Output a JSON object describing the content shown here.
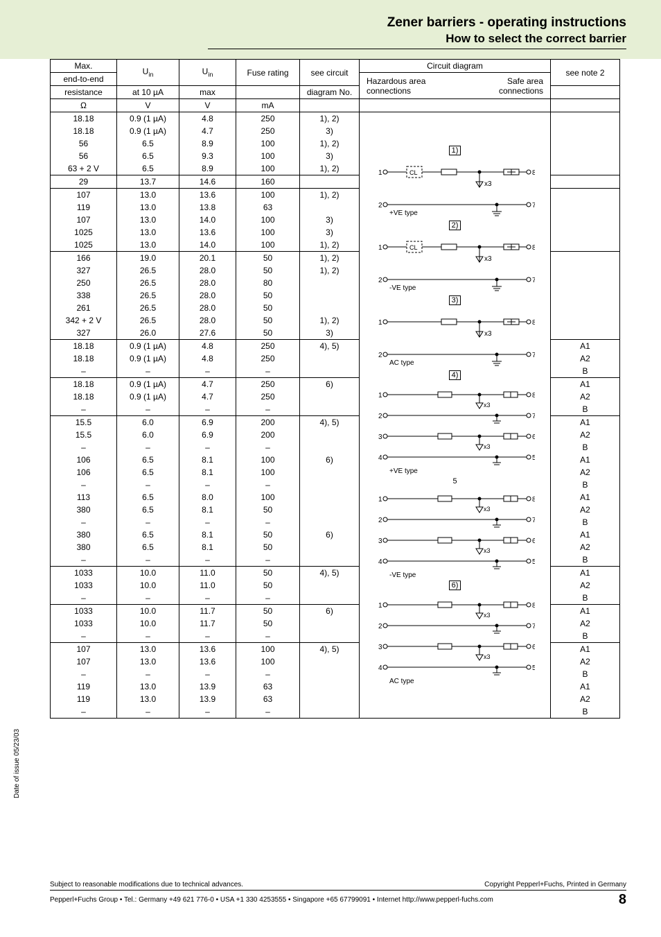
{
  "header": {
    "title1": "Zener barriers - operating instructions",
    "title2": "How to select the correct barrier"
  },
  "columns": {
    "a1": "Max.",
    "a2": "end-to-end",
    "a3": "resistance",
    "a4": "Ω",
    "b1": "U",
    "b1sub": "in",
    "b2": "at 10 µA",
    "b3": "V",
    "c1": "U",
    "c1sub": "in",
    "c2": "max",
    "c3": "V",
    "d1": "Fuse rating",
    "d2": "mA",
    "e1": "see circuit",
    "e2": "diagram No.",
    "f1": "Circuit diagram",
    "f2a": "Hazardous area",
    "f2b": "Safe area",
    "f3a": "connections",
    "f3b": "connections",
    "g1": "see note 2"
  },
  "rows": [
    {
      "a": "18.18",
      "b": "0.9 (1 µA)",
      "c": "4.8",
      "d": "250",
      "e": "1), 2)",
      "g": ""
    },
    {
      "a": "18.18",
      "b": "0.9 (1 µA)",
      "c": "4.7",
      "d": "250",
      "e": "3)",
      "g": ""
    },
    {
      "a": "56",
      "b": "6.5",
      "c": "8.9",
      "d": "100",
      "e": "1), 2)",
      "g": ""
    },
    {
      "a": "56",
      "b": "6.5",
      "c": "9.3",
      "d": "100",
      "e": "3)",
      "g": ""
    },
    {
      "a": "63 + 2 V",
      "b": "6.5",
      "c": "8.9",
      "d": "100",
      "e": "1), 2)",
      "g": "",
      "sep": true
    },
    {
      "a": "29",
      "b": "13.7",
      "c": "14.6",
      "d": "160",
      "e": "",
      "g": "",
      "sep": true
    },
    {
      "a": "107",
      "b": "13.0",
      "c": "13.6",
      "d": "100",
      "e": "1), 2)",
      "g": ""
    },
    {
      "a": "119",
      "b": "13.0",
      "c": "13.8",
      "d": "63",
      "e": "",
      "g": ""
    },
    {
      "a": "107",
      "b": "13.0",
      "c": "14.0",
      "d": "100",
      "e": "3)",
      "g": ""
    },
    {
      "a": "1025",
      "b": "13.0",
      "c": "13.6",
      "d": "100",
      "e": "3)",
      "g": ""
    },
    {
      "a": "1025",
      "b": "13.0",
      "c": "14.0",
      "d": "100",
      "e": "1), 2)",
      "g": "",
      "sep": true
    },
    {
      "a": "166",
      "b": "19.0",
      "c": "20.1",
      "d": "50",
      "e": "1), 2)",
      "g": ""
    },
    {
      "a": "327",
      "b": "26.5",
      "c": "28.0",
      "d": "50",
      "e": "1), 2)",
      "g": ""
    },
    {
      "a": "250",
      "b": "26.5",
      "c": "28.0",
      "d": "80",
      "e": "",
      "g": ""
    },
    {
      "a": "338",
      "b": "26.5",
      "c": "28.0",
      "d": "50",
      "e": "",
      "g": ""
    },
    {
      "a": "261",
      "b": "26.5",
      "c": "28.0",
      "d": "50",
      "e": "",
      "g": ""
    },
    {
      "a": "342 + 2 V",
      "b": "26.5",
      "c": "28.0",
      "d": "50",
      "e": "1), 2)",
      "g": ""
    },
    {
      "a": "327",
      "b": "26.0",
      "c": "27.6",
      "d": "50",
      "e": "3)",
      "g": "",
      "sep": true
    },
    {
      "a": "18.18",
      "b": "0.9 (1 µA)",
      "c": "4.8",
      "d": "250",
      "e": "4), 5)",
      "g": "A1"
    },
    {
      "a": "18.18",
      "b": "0.9 (1 µA)",
      "c": "4.8",
      "d": "250",
      "e": "",
      "g": "A2"
    },
    {
      "a": "–",
      "b": "–",
      "c": "–",
      "d": "–",
      "e": "",
      "g": "B",
      "sep": true
    },
    {
      "a": "18.18",
      "b": "0.9 (1 µA)",
      "c": "4.7",
      "d": "250",
      "e": "6)",
      "g": "A1"
    },
    {
      "a": "18.18",
      "b": "0.9 (1 µA)",
      "c": "4.7",
      "d": "250",
      "e": "",
      "g": "A2"
    },
    {
      "a": "–",
      "b": "–",
      "c": "–",
      "d": "–",
      "e": "",
      "g": "B",
      "sep": true
    },
    {
      "a": "15.5",
      "b": "6.0",
      "c": "6.9",
      "d": "200",
      "e": "4), 5)",
      "g": "A1"
    },
    {
      "a": "15.5",
      "b": "6.0",
      "c": "6.9",
      "d": "200",
      "e": "",
      "g": "A2"
    },
    {
      "a": "–",
      "b": "–",
      "c": "–",
      "d": "–",
      "e": "",
      "g": "B"
    },
    {
      "a": "106",
      "b": "6.5",
      "c": "8.1",
      "d": "100",
      "e": "6)",
      "g": "A1"
    },
    {
      "a": "106",
      "b": "6.5",
      "c": "8.1",
      "d": "100",
      "e": "",
      "g": "A2"
    },
    {
      "a": "–",
      "b": "–",
      "c": "–",
      "d": "–",
      "e": "",
      "g": "B"
    },
    {
      "a": "113",
      "b": "6.5",
      "c": "8.0",
      "d": "100",
      "e": "",
      "g": "A1"
    },
    {
      "a": "380",
      "b": "6.5",
      "c": "8.1",
      "d": "50",
      "e": "",
      "g": "A2"
    },
    {
      "a": "–",
      "b": "–",
      "c": "–",
      "d": "–",
      "e": "",
      "g": "B"
    },
    {
      "a": "380",
      "b": "6.5",
      "c": "8.1",
      "d": "50",
      "e": "6)",
      "g": "A1"
    },
    {
      "a": "380",
      "b": "6.5",
      "c": "8.1",
      "d": "50",
      "e": "",
      "g": "A2"
    },
    {
      "a": "–",
      "b": "–",
      "c": "–",
      "d": "–",
      "e": "",
      "g": "B",
      "sep": true
    },
    {
      "a": "1033",
      "b": "10.0",
      "c": "11.0",
      "d": "50",
      "e": "4), 5)",
      "g": "A1"
    },
    {
      "a": "1033",
      "b": "10.0",
      "c": "11.0",
      "d": "50",
      "e": "",
      "g": "A2"
    },
    {
      "a": "–",
      "b": "–",
      "c": "–",
      "d": "–",
      "e": "",
      "g": "B",
      "sep": true
    },
    {
      "a": "1033",
      "b": "10.0",
      "c": "11.7",
      "d": "50",
      "e": "6)",
      "g": "A1"
    },
    {
      "a": "1033",
      "b": "10.0",
      "c": "11.7",
      "d": "50",
      "e": "",
      "g": "A2"
    },
    {
      "a": "–",
      "b": "–",
      "c": "–",
      "d": "–",
      "e": "",
      "g": "B",
      "sep": true
    },
    {
      "a": "107",
      "b": "13.0",
      "c": "13.6",
      "d": "100",
      "e": "4), 5)",
      "g": "A1"
    },
    {
      "a": "107",
      "b": "13.0",
      "c": "13.6",
      "d": "100",
      "e": "",
      "g": "A2"
    },
    {
      "a": "–",
      "b": "–",
      "c": "–",
      "d": "–",
      "e": "",
      "g": "B"
    },
    {
      "a": "119",
      "b": "13.0",
      "c": "13.9",
      "d": "63",
      "e": "",
      "g": "A1"
    },
    {
      "a": "119",
      "b": "13.0",
      "c": "13.9",
      "d": "63",
      "e": "",
      "g": "A2"
    },
    {
      "a": "–",
      "b": "–",
      "c": "–",
      "d": "–",
      "e": "",
      "g": "B"
    }
  ],
  "diagrams": [
    {
      "num": "1)",
      "top_type": "+VE type",
      "cl": true
    },
    {
      "num": "2)",
      "top_type": "-VE type",
      "cl": true
    },
    {
      "num": "3)",
      "top_type": "AC type",
      "cl": false
    },
    {
      "num": "4)",
      "top_type": "+VE type",
      "four": true
    },
    {
      "num": "5",
      "top_type": "-VE type",
      "four": true,
      "noborder": true
    },
    {
      "num": "6)",
      "top_type": "AC type",
      "four": true
    }
  ],
  "diag_labels": {
    "t1": "1",
    "t2": "2",
    "t3": "3",
    "t4": "4",
    "t5": "5",
    "t6": "6",
    "t7": "7",
    "t8": "8",
    "cl": "CL",
    "x3": "x3"
  },
  "footer": {
    "side": "Date of issue    05/23/03",
    "l1a": "Subject to reasonable modifications due to technical advances.",
    "l1b": "Copyright Pepperl+Fuchs, Printed in Germany",
    "l2": "Pepperl+Fuchs Group • Tel.: Germany +49 621 776-0 • USA +1 330 4253555 • Singapore +65 67799091 • Internet http://www.pepperl-fuchs.com",
    "page": "8"
  }
}
